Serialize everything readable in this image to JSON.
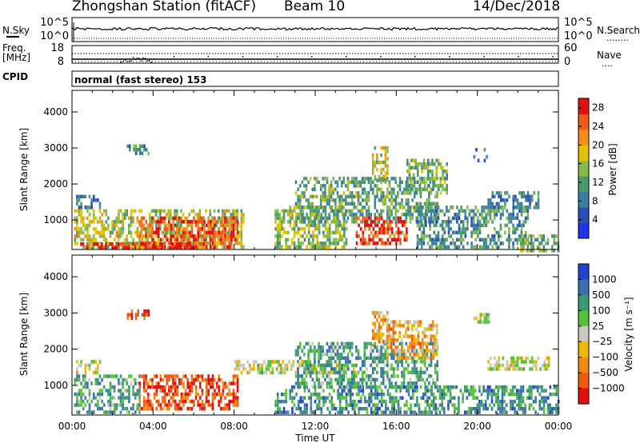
{
  "header": {
    "station": "Zhongshan Station (fitACF)",
    "beam": "Beam 10",
    "date": "14/Dec/2018"
  },
  "noise_panel": {
    "left_label": "N.Sky",
    "left_ticks": [
      "10^5",
      "10^0"
    ],
    "right_ticks": [
      "10^5",
      "10^0"
    ],
    "right_label": "N.Search",
    "right_legend_line": "........"
  },
  "freq_panel": {
    "left_label_line1": "Freq.",
    "left_label_line2": "[MHz]",
    "left_ticks": [
      "18",
      "8"
    ],
    "right_ticks": [
      "60",
      "0"
    ],
    "right_label": "Nave",
    "right_legend_line": "....",
    "cpid_label": "CPID",
    "mode_text": "normal (fast stereo) 153"
  },
  "x_axis": {
    "label": "Time UT",
    "ticks": [
      "00:00",
      "04:00",
      "08:00",
      "12:00",
      "16:00",
      "20:00",
      "00:00"
    ]
  },
  "chart_data": [
    {
      "type": "heatmap",
      "name": "power",
      "ylabel": "Slant Range [km]",
      "ylim": [
        180,
        4600
      ],
      "y_ticks": [
        "1000",
        "2000",
        "3000",
        "4000"
      ],
      "y_tick_values": [
        1000,
        2000,
        3000,
        4000
      ],
      "xlim_hours": [
        0,
        24
      ],
      "colorbar": {
        "label": "Power [dB]",
        "ticks": [
          "4",
          "8",
          "12",
          "16",
          "20",
          "24",
          "28"
        ],
        "tick_values": [
          4,
          8,
          12,
          16,
          20,
          24,
          28
        ],
        "range": [
          0,
          30
        ],
        "colors": [
          "#2233ee",
          "#2a4fb8",
          "#3b7fa0",
          "#4a9a6c",
          "#86b84a",
          "#e0c200",
          "#f0901a",
          "#ee5a1a",
          "#e01010"
        ]
      },
      "regions": [
        {
          "t": [
            0.2,
            1.4
          ],
          "r": [
            1400,
            1700
          ],
          "level": 0.25
        },
        {
          "t": [
            0.1,
            8.5
          ],
          "r": [
            250,
            1300
          ],
          "level": 0.55
        },
        {
          "t": [
            3.3,
            8.2
          ],
          "r": [
            300,
            1100
          ],
          "level": 0.85
        },
        {
          "t": [
            0.4,
            6.5
          ],
          "r": [
            220,
            380
          ],
          "level": 0.95
        },
        {
          "t": [
            2.7,
            3.8
          ],
          "r": [
            2900,
            3100
          ],
          "level": 0.3
        },
        {
          "t": [
            10.0,
            13.5
          ],
          "r": [
            250,
            1400
          ],
          "level": 0.5
        },
        {
          "t": [
            11.0,
            18.0
          ],
          "r": [
            1000,
            2200
          ],
          "level": 0.4
        },
        {
          "t": [
            14.0,
            16.5
          ],
          "r": [
            400,
            1100
          ],
          "level": 0.9
        },
        {
          "t": [
            14.8,
            15.6
          ],
          "r": [
            2100,
            3050
          ],
          "level": 0.55
        },
        {
          "t": [
            16.5,
            18.5
          ],
          "r": [
            1800,
            2700
          ],
          "level": 0.45
        },
        {
          "t": [
            17.0,
            22.5
          ],
          "r": [
            300,
            1400
          ],
          "level": 0.35
        },
        {
          "t": [
            20.5,
            23.0
          ],
          "r": [
            1400,
            1800
          ],
          "level": 0.3
        },
        {
          "t": [
            22.0,
            24.0
          ],
          "r": [
            200,
            600
          ],
          "level": 0.45
        },
        {
          "t": [
            19.8,
            20.5
          ],
          "r": [
            2700,
            3000
          ],
          "level": 0.25
        }
      ]
    },
    {
      "type": "heatmap",
      "name": "velocity",
      "ylabel": "Slant Range [km]",
      "ylim": [
        180,
        4600
      ],
      "y_ticks": [
        "1000",
        "2000",
        "3000",
        "4000"
      ],
      "y_tick_values": [
        1000,
        2000,
        3000,
        4000
      ],
      "xlim_hours": [
        0,
        24
      ],
      "colorbar": {
        "label": "Velocity [m s⁻¹]",
        "ticks": [
          "1000",
          "500",
          "100",
          "25",
          "−25",
          "−100",
          "−500",
          "−1000"
        ],
        "tick_values": [
          1000,
          500,
          100,
          25,
          -25,
          -100,
          -500,
          -1000
        ],
        "colors": [
          "#2244cc",
          "#3a6fb0",
          "#3d9a70",
          "#56c23c",
          "#c8c8c0",
          "#f2b800",
          "#f08a10",
          "#ee5a10",
          "#e01010"
        ]
      },
      "regions": [
        {
          "t": [
            0.2,
            1.4
          ],
          "r": [
            1400,
            1700
          ],
          "level": 0.55
        },
        {
          "t": [
            0.1,
            3.3
          ],
          "r": [
            250,
            1300
          ],
          "level": 0.3
        },
        {
          "t": [
            3.3,
            8.2
          ],
          "r": [
            400,
            1300
          ],
          "level": 0.85
        },
        {
          "t": [
            2.7,
            3.8
          ],
          "r": [
            2900,
            3100
          ],
          "level": 0.9
        },
        {
          "t": [
            8.0,
            14.0
          ],
          "r": [
            1400,
            1700
          ],
          "level": 0.5
        },
        {
          "t": [
            10.0,
            24.0
          ],
          "r": [
            220,
            1000
          ],
          "level": 0.25
        },
        {
          "t": [
            11.0,
            18.0
          ],
          "r": [
            1000,
            2200
          ],
          "level": 0.3
        },
        {
          "t": [
            14.8,
            15.6
          ],
          "r": [
            2100,
            3050
          ],
          "level": 0.7
        },
        {
          "t": [
            15.5,
            18.0
          ],
          "r": [
            1800,
            2800
          ],
          "level": 0.65
        },
        {
          "t": [
            20.5,
            23.5
          ],
          "r": [
            1450,
            1800
          ],
          "level": 0.5
        },
        {
          "t": [
            19.8,
            20.6
          ],
          "r": [
            2800,
            3000
          ],
          "level": 0.5
        }
      ]
    }
  ]
}
